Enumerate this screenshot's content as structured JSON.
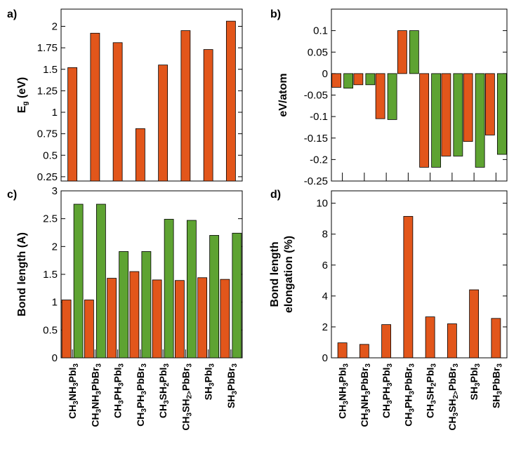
{
  "colors": {
    "series1": "#e2561b",
    "series2": "#5ea332",
    "axis": "#000000"
  },
  "categories": [
    {
      "parts": [
        [
          "CH",
          "n"
        ],
        [
          "3",
          "s"
        ],
        [
          "NH",
          "n"
        ],
        [
          "3",
          "s"
        ],
        [
          "PbI",
          "n"
        ],
        [
          "3",
          "s"
        ]
      ]
    },
    {
      "parts": [
        [
          "CH",
          "n"
        ],
        [
          "3",
          "s"
        ],
        [
          "NH",
          "n"
        ],
        [
          "3",
          "s"
        ],
        [
          "PbBr",
          "n"
        ],
        [
          "3",
          "s"
        ]
      ]
    },
    {
      "parts": [
        [
          "CH",
          "n"
        ],
        [
          "3",
          "s"
        ],
        [
          "PH",
          "n"
        ],
        [
          "3",
          "s"
        ],
        [
          "PbI",
          "n"
        ],
        [
          "3",
          "s"
        ]
      ]
    },
    {
      "parts": [
        [
          "CH",
          "n"
        ],
        [
          "3",
          "s"
        ],
        [
          "PH",
          "n"
        ],
        [
          "3",
          "s"
        ],
        [
          "PbBr",
          "n"
        ],
        [
          "3",
          "s"
        ]
      ]
    },
    {
      "parts": [
        [
          "CH",
          "n"
        ],
        [
          "3",
          "s"
        ],
        [
          "SH",
          "n"
        ],
        [
          "2",
          "s"
        ],
        [
          "PbI",
          "n"
        ],
        [
          "3",
          "s"
        ]
      ]
    },
    {
      "parts": [
        [
          "CH",
          "n"
        ],
        [
          "3",
          "s"
        ],
        [
          "SH",
          "n"
        ],
        [
          "2>",
          "s"
        ],
        [
          "PbBr",
          "n"
        ],
        [
          "3",
          "s"
        ]
      ]
    },
    {
      "parts": [
        [
          "SH",
          "n"
        ],
        [
          "3",
          "s"
        ],
        [
          "PbI",
          "n"
        ],
        [
          "3",
          "s"
        ]
      ]
    },
    {
      "parts": [
        [
          "SH",
          "n"
        ],
        [
          "3",
          "s"
        ],
        [
          "PbBr",
          "n"
        ],
        [
          "3",
          "s"
        ]
      ]
    }
  ],
  "chart_data": [
    {
      "panel": "a)",
      "type": "bar",
      "ylabel_parts": [
        [
          "E",
          "n"
        ],
        [
          "g",
          "s"
        ],
        [
          " (eV)",
          "n"
        ]
      ],
      "ylim": [
        0.2,
        2.2
      ],
      "yticks": [
        0.25,
        0.5,
        0.75,
        1,
        1.25,
        1.5,
        1.75,
        2
      ],
      "ytick_labels": [
        "0.25",
        "0.5",
        "0.75",
        "1",
        "1.25",
        "1.5",
        "1.75",
        "2"
      ],
      "series": [
        {
          "name": "series1",
          "values": [
            1.52,
            1.92,
            1.81,
            0.81,
            1.55,
            1.95,
            1.73,
            2.06
          ]
        }
      ]
    },
    {
      "panel": "b)",
      "type": "bar",
      "ylabel_parts": [
        [
          "eV/atom",
          "n"
        ]
      ],
      "ylim": [
        -0.25,
        0.15
      ],
      "yticks": [
        -0.25,
        -0.2,
        -0.15,
        -0.1,
        -0.05,
        0,
        0.05,
        0.1
      ],
      "ytick_labels": [
        "-0.25",
        "-0.2",
        "-0.15",
        "-0.1",
        "-0.05",
        "0",
        "0.05",
        "0.1"
      ],
      "series": [
        {
          "name": "series1",
          "values": [
            -0.032,
            -0.026,
            -0.105,
            0.1,
            -0.218,
            -0.192,
            -0.158,
            -0.143
          ]
        },
        {
          "name": "series2",
          "values": [
            -0.034,
            -0.026,
            -0.107,
            0.1,
            -0.218,
            -0.192,
            -0.218,
            -0.188
          ]
        }
      ]
    },
    {
      "panel": "c)",
      "type": "bar",
      "ylabel_parts": [
        [
          "Bond length (A)",
          "n"
        ]
      ],
      "ylim": [
        0,
        3
      ],
      "yticks": [
        0,
        0.5,
        1,
        1.5,
        2,
        2.5,
        3
      ],
      "ytick_labels": [
        "0",
        "0.5",
        "1",
        "1.5",
        "2",
        "2.5",
        "3"
      ],
      "series": [
        {
          "name": "series1",
          "values": [
            1.04,
            1.04,
            1.43,
            1.55,
            1.4,
            1.39,
            1.44,
            1.41
          ]
        },
        {
          "name": "series2",
          "values": [
            2.76,
            2.76,
            1.91,
            1.91,
            2.49,
            2.47,
            2.2,
            2.24
          ]
        }
      ]
    },
    {
      "panel": "d)",
      "type": "bar",
      "ylabel_lines": [
        "Bond length",
        "elongation (%)"
      ],
      "ylim": [
        0,
        10.8
      ],
      "yticks": [
        0,
        2,
        4,
        6,
        8,
        10
      ],
      "ytick_labels": [
        "0",
        "2",
        "4",
        "6",
        "8",
        "10"
      ],
      "series": [
        {
          "name": "series1",
          "values": [
            0.97,
            0.87,
            2.15,
            9.15,
            2.65,
            2.2,
            4.4,
            2.55
          ]
        }
      ]
    }
  ]
}
